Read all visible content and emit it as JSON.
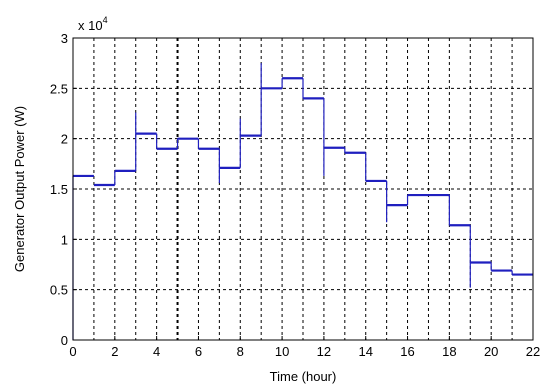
{
  "chart_data": {
    "type": "line",
    "title": "",
    "xlabel": "Time (hour)",
    "ylabel": "Generator Output Power (W)",
    "y_multiplier_text": "x 10",
    "y_multiplier_exponent": "4",
    "xlim": [
      0,
      22
    ],
    "ylim": [
      0,
      30000
    ],
    "x_ticks": [
      0,
      2,
      4,
      6,
      8,
      10,
      12,
      14,
      16,
      18,
      20,
      22
    ],
    "x_tick_labels": [
      "0",
      "2",
      "4",
      "6",
      "8",
      "10",
      "12",
      "14",
      "16",
      "18",
      "20",
      "22"
    ],
    "y_ticks": [
      0,
      5000,
      10000,
      15000,
      20000,
      25000,
      30000
    ],
    "y_tick_labels": [
      "0",
      "0.5",
      "1",
      "1.5",
      "2",
      "2.5",
      "3"
    ],
    "grid": true,
    "grid_style": "dashed",
    "line_color": "#1f1fbf",
    "series": [
      {
        "hours": [
          0,
          1,
          2,
          3,
          4,
          5,
          6,
          7,
          8,
          9,
          10,
          11,
          12,
          13,
          14,
          15,
          16,
          17,
          18,
          19,
          20,
          21
        ],
        "values": [
          16300,
          15400,
          16800,
          20500,
          19000,
          20000,
          19000,
          17100,
          20300,
          25000,
          26000,
          24000,
          19100,
          18600,
          15800,
          13400,
          14400,
          14400,
          11400,
          7700,
          6900,
          6500
        ],
        "spike_peaks": [
          16300,
          15400,
          16800,
          22600,
          20500,
          20000,
          20000,
          19000,
          22000,
          27500,
          26000,
          26000,
          24000,
          19100,
          18600,
          15800,
          14400,
          14400,
          14400,
          11400,
          7700,
          6900
        ],
        "spike_troughs": [
          0,
          15400,
          15400,
          16800,
          19000,
          19000,
          19000,
          15600,
          17100,
          20300,
          25000,
          24000,
          16300,
          18600,
          15800,
          11700,
          13400,
          14400,
          11400,
          5200,
          6900,
          6500
        ]
      }
    ]
  }
}
